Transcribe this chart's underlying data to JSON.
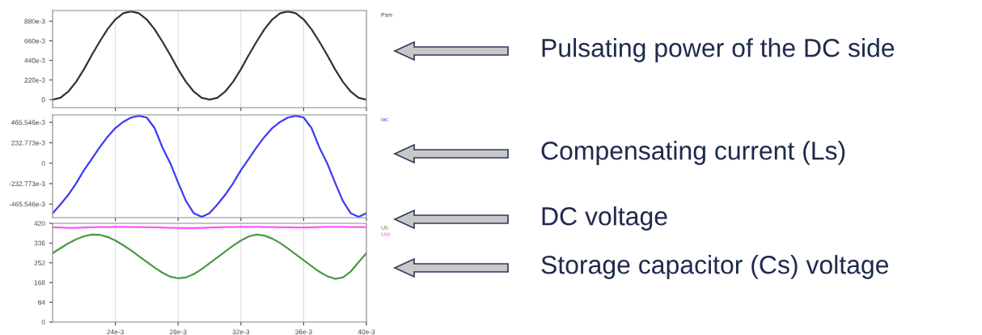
{
  "chart_data": [
    {
      "type": "line",
      "legend": "right",
      "grid": "x",
      "tick_labels": "y",
      "x": [
        0.02,
        0.0205,
        0.021,
        0.0215,
        0.022,
        0.0225,
        0.023,
        0.0235,
        0.024,
        0.0245,
        0.025,
        0.0255,
        0.026,
        0.0265,
        0.027,
        0.0275,
        0.028,
        0.0285,
        0.029,
        0.0295,
        0.03,
        0.0305,
        0.031,
        0.0315,
        0.032,
        0.0325,
        0.033,
        0.0335,
        0.034,
        0.0345,
        0.035,
        0.0355,
        0.036,
        0.0365,
        0.037,
        0.0375,
        0.038,
        0.0385,
        0.039,
        0.0395,
        0.04
      ],
      "xlim": [
        0.02,
        0.04
      ],
      "xticks": [
        {
          "value": 0.024,
          "label": null
        },
        {
          "value": 0.028,
          "label": null
        },
        {
          "value": 0.032,
          "label": null
        },
        {
          "value": 0.036,
          "label": null
        },
        {
          "value": 0.04,
          "label": null
        }
      ],
      "ylim": [
        -0.09,
        1.0
      ],
      "yticks": [
        0,
        {
          "value": 0.22,
          "label": "220e-3"
        },
        {
          "value": 0.44,
          "label": "440e-3"
        },
        {
          "value": 0.66,
          "label": "660e-3"
        },
        {
          "value": 0.88,
          "label": "880e-3"
        }
      ],
      "series": [
        {
          "name": "Psm",
          "color": "#333333",
          "values": [
            0,
            0.02,
            0.09,
            0.2,
            0.34,
            0.5,
            0.65,
            0.79,
            0.9,
            0.97,
            0.99,
            0.97,
            0.9,
            0.79,
            0.65,
            0.5,
            0.34,
            0.2,
            0.09,
            0.02,
            0,
            0.02,
            0.09,
            0.2,
            0.34,
            0.5,
            0.65,
            0.79,
            0.9,
            0.97,
            0.99,
            0.97,
            0.9,
            0.79,
            0.65,
            0.5,
            0.34,
            0.2,
            0.09,
            0.02,
            0
          ]
        }
      ],
      "annotations": [
        "Pulsating power of the DC side"
      ]
    },
    {
      "type": "line",
      "legend": "right",
      "grid": "x",
      "tick_labels": "y",
      "x": [
        0.02,
        0.0205,
        0.021,
        0.0215,
        0.022,
        0.0225,
        0.023,
        0.0235,
        0.024,
        0.0245,
        0.025,
        0.0255,
        0.026,
        0.0265,
        0.027,
        0.0275,
        0.028,
        0.0285,
        0.029,
        0.0295,
        0.03,
        0.0305,
        0.031,
        0.0315,
        0.032,
        0.0325,
        0.033,
        0.0335,
        0.034,
        0.0345,
        0.035,
        0.0355,
        0.036,
        0.0365,
        0.037,
        0.0375,
        0.038,
        0.0385,
        0.039,
        0.0395,
        0.04
      ],
      "xlim": [
        0.02,
        0.04
      ],
      "xticks": [
        {
          "value": 0.024,
          "label": null
        },
        {
          "value": 0.028,
          "label": null
        },
        {
          "value": 0.032,
          "label": null
        },
        {
          "value": 0.036,
          "label": null
        },
        {
          "value": 0.04,
          "label": null
        }
      ],
      "ylim": [
        -0.62,
        0.55
      ],
      "yticks": [
        {
          "value": -0.465546,
          "label": "-465.546e-3"
        },
        {
          "value": -0.232773,
          "label": "-232.773e-3"
        },
        0,
        {
          "value": 0.232773,
          "label": "232.773e-3"
        },
        {
          "value": 0.465546,
          "label": "465.546e-3"
        }
      ],
      "series": [
        {
          "name": "iac",
          "color": "#3b3bf5",
          "values": [
            -0.57,
            -0.47,
            -0.36,
            -0.23,
            -0.08,
            0.05,
            0.18,
            0.3,
            0.4,
            0.47,
            0.52,
            0.54,
            0.52,
            0.4,
            0.18,
            0.0,
            -0.22,
            -0.43,
            -0.57,
            -0.61,
            -0.57,
            -0.47,
            -0.36,
            -0.23,
            -0.08,
            0.05,
            0.18,
            0.3,
            0.4,
            0.47,
            0.52,
            0.54,
            0.52,
            0.4,
            0.18,
            0.0,
            -0.22,
            -0.43,
            -0.57,
            -0.61,
            -0.57
          ]
        }
      ],
      "annotations": [
        "Compensating current (Ls)"
      ]
    },
    {
      "type": "line",
      "legend": "right",
      "grid": "x",
      "x": [
        0.02,
        0.0205,
        0.021,
        0.0215,
        0.022,
        0.0225,
        0.023,
        0.0235,
        0.024,
        0.0245,
        0.025,
        0.0255,
        0.026,
        0.0265,
        0.027,
        0.0275,
        0.028,
        0.0285,
        0.029,
        0.0295,
        0.03,
        0.0305,
        0.031,
        0.0315,
        0.032,
        0.0325,
        0.033,
        0.0335,
        0.034,
        0.0345,
        0.035,
        0.0355,
        0.036,
        0.0365,
        0.037,
        0.0375,
        0.038,
        0.0385,
        0.039,
        0.0395,
        0.04
      ],
      "xlim": [
        0.02,
        0.04
      ],
      "xticks": [
        {
          "value": 0.024,
          "label": "24e-3"
        },
        {
          "value": 0.028,
          "label": "28e-3"
        },
        {
          "value": 0.032,
          "label": "32e-3"
        },
        {
          "value": 0.036,
          "label": "36e-3"
        },
        {
          "value": 0.04,
          "label": "40e-3"
        }
      ],
      "ylim": [
        0,
        420
      ],
      "yticks": [
        0,
        84,
        168,
        252,
        336,
        420
      ],
      "series": [
        {
          "name": "Ub",
          "color": "#4a9a44",
          "values": [
            293,
            314,
            335,
            352,
            365,
            372,
            371,
            362,
            347,
            327,
            305,
            280,
            256,
            232,
            210,
            193,
            186,
            190,
            204,
            225,
            250,
            275,
            300,
            325,
            347,
            364,
            372,
            368,
            355,
            336,
            313,
            288,
            263,
            238,
            214,
            195,
            184,
            190,
            215,
            255,
            293
          ]
        },
        {
          "name": "Udc",
          "color": "#ff55ff",
          "values": [
            403,
            402,
            401,
            401,
            402,
            403,
            404,
            404,
            405,
            405,
            404,
            404,
            403,
            403,
            402,
            401,
            401,
            400,
            400,
            401,
            402,
            403,
            404,
            404,
            405,
            405,
            405,
            404,
            404,
            403,
            403,
            402,
            402,
            403,
            404,
            405,
            405,
            405,
            404,
            404,
            404
          ]
        }
      ],
      "annotations": [
        "DC voltage",
        "Storage capacitor (Cs) voltage"
      ]
    }
  ]
}
